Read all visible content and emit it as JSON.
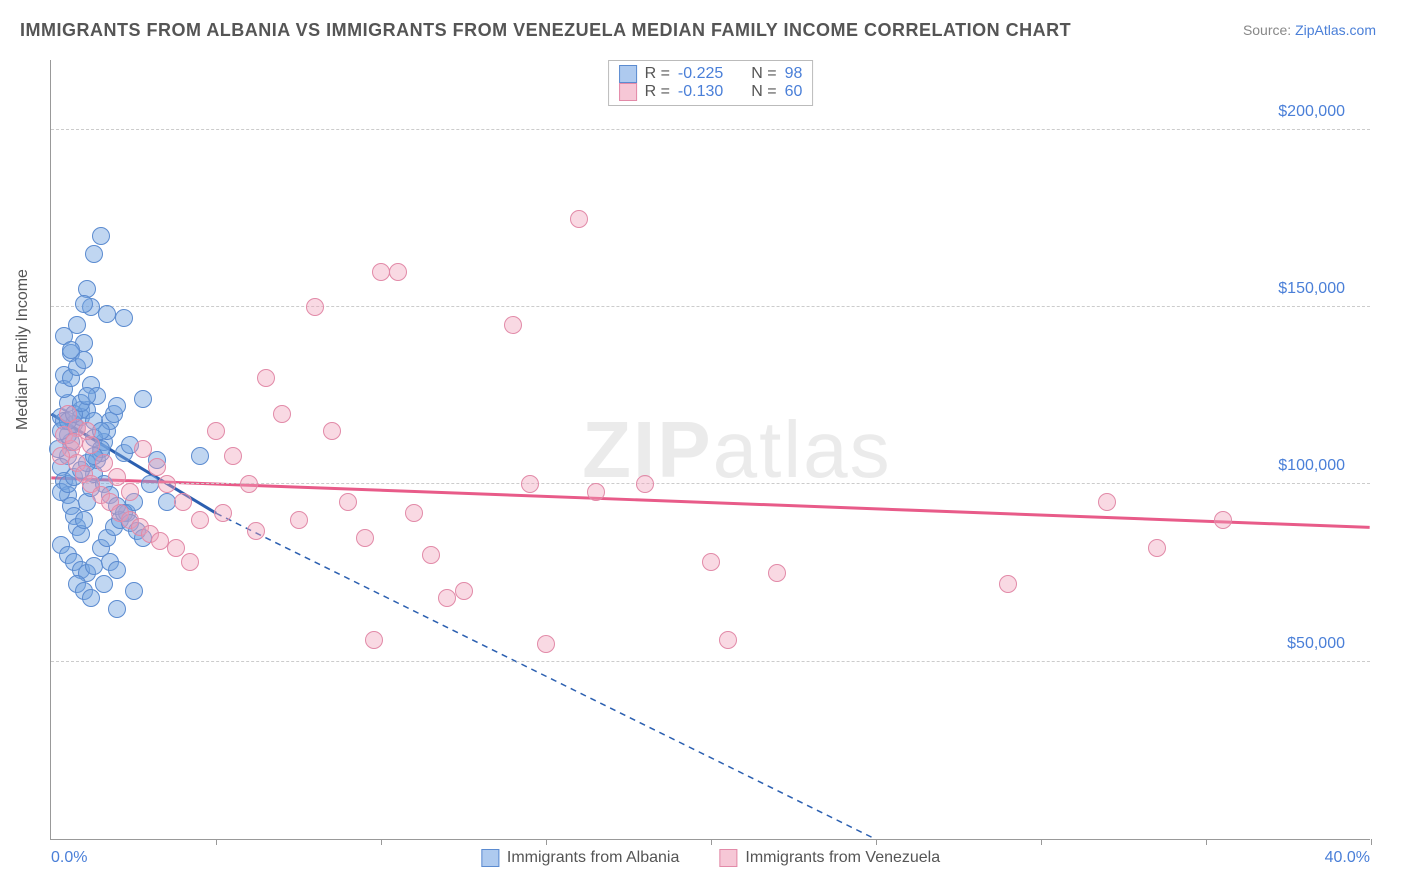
{
  "title": "IMMIGRANTS FROM ALBANIA VS IMMIGRANTS FROM VENEZUELA MEDIAN FAMILY INCOME CORRELATION CHART",
  "source_prefix": "Source: ",
  "source_link": "ZipAtlas.com",
  "y_axis_label": "Median Family Income",
  "watermark_bold": "ZIP",
  "watermark_thin": "atlas",
  "chart": {
    "type": "scatter",
    "xlim": [
      0,
      40
    ],
    "ylim": [
      0,
      220000
    ],
    "x_min_label": "0.0%",
    "x_max_label": "40.0%",
    "x_ticks": [
      0,
      5,
      10,
      15,
      20,
      25,
      30,
      35,
      40
    ],
    "y_ticks": [
      {
        "v": 50000,
        "label": "$50,000"
      },
      {
        "v": 100000,
        "label": "$100,000"
      },
      {
        "v": 150000,
        "label": "$150,000"
      },
      {
        "v": 200000,
        "label": "$200,000"
      }
    ],
    "background_color": "#ffffff",
    "grid_color": "#cccccc",
    "marker_radius": 9,
    "series": [
      {
        "name": "Immigrants from Albania",
        "color_fill": "rgba(115,165,225,0.45)",
        "color_stroke": "#5b8bd0",
        "legend_swatch_fill": "#aecaef",
        "legend_swatch_stroke": "#5b8bd0",
        "R": "-0.225",
        "N": "98",
        "trend": {
          "x1": 0,
          "y1": 120000,
          "x2": 5,
          "y2": 92000,
          "xext": 25,
          "yext": 0,
          "color": "#2b5fb0",
          "width": 3
        },
        "points": [
          [
            0.3,
            119000
          ],
          [
            0.4,
            118000
          ],
          [
            0.5,
            123000
          ],
          [
            0.6,
            112000
          ],
          [
            0.5,
            108000
          ],
          [
            0.8,
            116000
          ],
          [
            0.9,
            121000
          ],
          [
            1.0,
            140000
          ],
          [
            1.1,
            155000
          ],
          [
            1.2,
            150000
          ],
          [
            1.3,
            165000
          ],
          [
            1.5,
            170000
          ],
          [
            0.4,
            131000
          ],
          [
            0.6,
            137000
          ],
          [
            0.8,
            145000
          ],
          [
            1.0,
            151000
          ],
          [
            1.7,
            148000
          ],
          [
            2.2,
            147000
          ],
          [
            0.3,
            105000
          ],
          [
            0.4,
            101000
          ],
          [
            0.5,
            97000
          ],
          [
            0.6,
            94000
          ],
          [
            0.7,
            91000
          ],
          [
            0.8,
            88000
          ],
          [
            0.9,
            86000
          ],
          [
            1.0,
            90000
          ],
          [
            1.1,
            95000
          ],
          [
            1.2,
            99000
          ],
          [
            1.3,
            103000
          ],
          [
            1.4,
            107000
          ],
          [
            1.5,
            109000
          ],
          [
            1.6,
            112000
          ],
          [
            1.7,
            115000
          ],
          [
            1.8,
            118000
          ],
          [
            1.9,
            120000
          ],
          [
            2.0,
            122000
          ],
          [
            0.3,
            83000
          ],
          [
            0.5,
            80000
          ],
          [
            0.7,
            78000
          ],
          [
            0.9,
            76000
          ],
          [
            1.1,
            75000
          ],
          [
            1.3,
            77000
          ],
          [
            1.5,
            82000
          ],
          [
            1.7,
            85000
          ],
          [
            1.9,
            88000
          ],
          [
            2.1,
            90000
          ],
          [
            2.3,
            92000
          ],
          [
            2.5,
            95000
          ],
          [
            0.4,
            127000
          ],
          [
            0.6,
            130000
          ],
          [
            0.8,
            133000
          ],
          [
            1.0,
            135000
          ],
          [
            1.2,
            128000
          ],
          [
            1.4,
            125000
          ],
          [
            0.5,
            114000
          ],
          [
            0.7,
            117000
          ],
          [
            0.9,
            119000
          ],
          [
            1.1,
            121000
          ],
          [
            1.3,
            113000
          ],
          [
            1.5,
            110000
          ],
          [
            0.3,
            98000
          ],
          [
            0.5,
            100000
          ],
          [
            0.7,
            102000
          ],
          [
            0.9,
            104000
          ],
          [
            1.1,
            106000
          ],
          [
            1.3,
            108000
          ],
          [
            1.6,
            100000
          ],
          [
            1.8,
            97000
          ],
          [
            2.0,
            94000
          ],
          [
            2.2,
            92000
          ],
          [
            2.4,
            89000
          ],
          [
            2.6,
            87000
          ],
          [
            1.8,
            78000
          ],
          [
            2.0,
            76000
          ],
          [
            2.2,
            109000
          ],
          [
            2.4,
            111000
          ],
          [
            0.4,
            142000
          ],
          [
            0.6,
            138000
          ],
          [
            2.8,
            124000
          ],
          [
            3.0,
            100000
          ],
          [
            3.2,
            107000
          ],
          [
            3.5,
            95000
          ],
          [
            0.2,
            110000
          ],
          [
            0.3,
            115000
          ],
          [
            0.5,
            118000
          ],
          [
            0.7,
            120000
          ],
          [
            0.9,
            123000
          ],
          [
            1.1,
            125000
          ],
          [
            1.3,
            118000
          ],
          [
            1.5,
            115000
          ],
          [
            2.0,
            65000
          ],
          [
            2.5,
            70000
          ],
          [
            0.8,
            72000
          ],
          [
            1.0,
            70000
          ],
          [
            1.2,
            68000
          ],
          [
            1.6,
            72000
          ],
          [
            2.8,
            85000
          ],
          [
            4.5,
            108000
          ]
        ]
      },
      {
        "name": "Immigrants from Venezuela",
        "color_fill": "rgba(240,160,185,0.40)",
        "color_stroke": "#e28aa8",
        "legend_swatch_fill": "#f6c7d6",
        "legend_swatch_stroke": "#e28aa8",
        "R": "-0.130",
        "N": "60",
        "trend": {
          "x1": 0,
          "y1": 102000,
          "x2": 40,
          "y2": 88000,
          "color": "#e85b89",
          "width": 3
        },
        "points": [
          [
            0.4,
            114000
          ],
          [
            0.6,
            110000
          ],
          [
            0.8,
            106000
          ],
          [
            1.0,
            103000
          ],
          [
            1.2,
            100000
          ],
          [
            1.5,
            97000
          ],
          [
            1.8,
            95000
          ],
          [
            2.1,
            92000
          ],
          [
            2.4,
            90000
          ],
          [
            2.7,
            88000
          ],
          [
            3.0,
            86000
          ],
          [
            3.3,
            84000
          ],
          [
            0.5,
            120000
          ],
          [
            0.8,
            116000
          ],
          [
            1.2,
            111000
          ],
          [
            1.6,
            106000
          ],
          [
            2.0,
            102000
          ],
          [
            2.4,
            98000
          ],
          [
            3.5,
            100000
          ],
          [
            4.0,
            95000
          ],
          [
            4.5,
            90000
          ],
          [
            5.0,
            115000
          ],
          [
            5.5,
            108000
          ],
          [
            6.0,
            100000
          ],
          [
            6.5,
            130000
          ],
          [
            7.0,
            120000
          ],
          [
            8.0,
            150000
          ],
          [
            8.5,
            115000
          ],
          [
            9.0,
            95000
          ],
          [
            9.5,
            85000
          ],
          [
            10.0,
            160000
          ],
          [
            10.5,
            160000
          ],
          [
            11.0,
            92000
          ],
          [
            11.5,
            80000
          ],
          [
            12.0,
            68000
          ],
          [
            12.5,
            70000
          ],
          [
            14.0,
            145000
          ],
          [
            14.5,
            100000
          ],
          [
            15.0,
            55000
          ],
          [
            16.0,
            175000
          ],
          [
            16.5,
            98000
          ],
          [
            18.0,
            100000
          ],
          [
            20.0,
            78000
          ],
          [
            20.5,
            56000
          ],
          [
            22.0,
            75000
          ],
          [
            29.0,
            72000
          ],
          [
            32.0,
            95000
          ],
          [
            33.5,
            82000
          ],
          [
            35.5,
            90000
          ],
          [
            3.8,
            82000
          ],
          [
            4.2,
            78000
          ],
          [
            2.8,
            110000
          ],
          [
            3.2,
            105000
          ],
          [
            5.2,
            92000
          ],
          [
            6.2,
            87000
          ],
          [
            7.5,
            90000
          ],
          [
            0.3,
            108000
          ],
          [
            0.7,
            112000
          ],
          [
            1.1,
            115000
          ],
          [
            9.8,
            56000
          ]
        ]
      }
    ]
  }
}
